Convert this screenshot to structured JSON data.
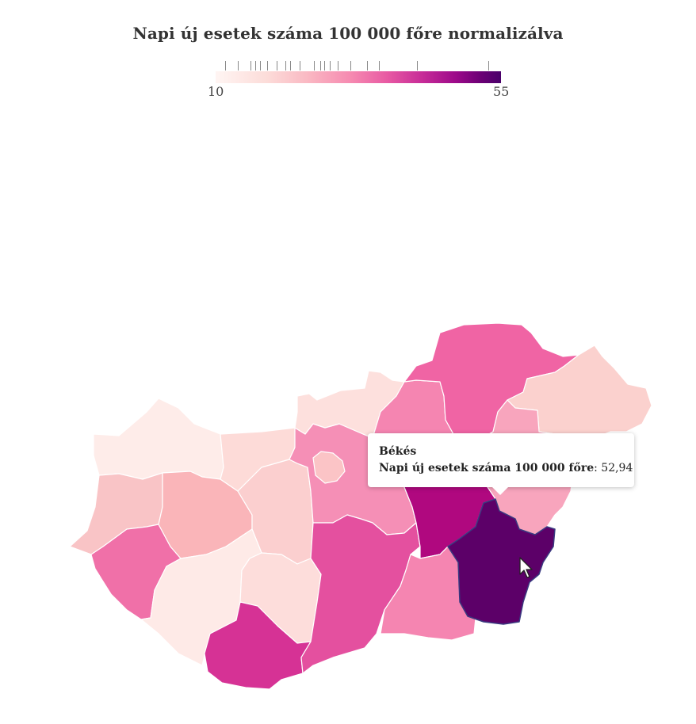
{
  "title": "Napi új esetek száma 100 000 főre normalizálva",
  "legend": {
    "min_label": "10",
    "max_label": "55",
    "min": 10,
    "max": 55,
    "tick_values": [
      11.5,
      13.5,
      15.5,
      16.2,
      17.0,
      18.1,
      19.6,
      21.0,
      21.8,
      23.3,
      25.5,
      26.5,
      27.1,
      28.0,
      29.2,
      31.2,
      33.9,
      35.7,
      41.7,
      53.0
    ]
  },
  "tooltip": {
    "county": "Békés",
    "label": "Napi új esetek száma 100 000 főre",
    "value": "52,94"
  },
  "counties": [
    {
      "name": "Győr-Moson-Sopron",
      "color": "#feece9"
    },
    {
      "name": "Vas",
      "color": "#f9c4c6"
    },
    {
      "name": "Zala",
      "color": "#f070a8"
    },
    {
      "name": "Veszprém",
      "color": "#fab5b9"
    },
    {
      "name": "Komárom-Esztergom",
      "color": "#fddbd8"
    },
    {
      "name": "Fejér",
      "color": "#fbcfcf"
    },
    {
      "name": "Somogy",
      "color": "#feeae7"
    },
    {
      "name": "Tolna",
      "color": "#fddddb"
    },
    {
      "name": "Baranya",
      "color": "#d63295"
    },
    {
      "name": "Pest",
      "color": "#f58fb6"
    },
    {
      "name": "Budapest",
      "color": "#fbc4c6"
    },
    {
      "name": "Bács-Kiskun",
      "color": "#e4509f"
    },
    {
      "name": "Nógrád",
      "color": "#fde0dd"
    },
    {
      "name": "Heves",
      "color": "#f585b1"
    },
    {
      "name": "Borsod-Abaúj-Zemplén",
      "color": "#f064a4"
    },
    {
      "name": "Szabolcs-Szatmár-Bereg",
      "color": "#fbd1ce"
    },
    {
      "name": "Hajdú-Bihar",
      "color": "#f8a5bd"
    },
    {
      "name": "Jász-Nagykun-Szolnok",
      "color": "#b0087f"
    },
    {
      "name": "Csongrád",
      "color": "#f585b1"
    },
    {
      "name": "Békés",
      "color": "#5c0068"
    }
  ]
}
